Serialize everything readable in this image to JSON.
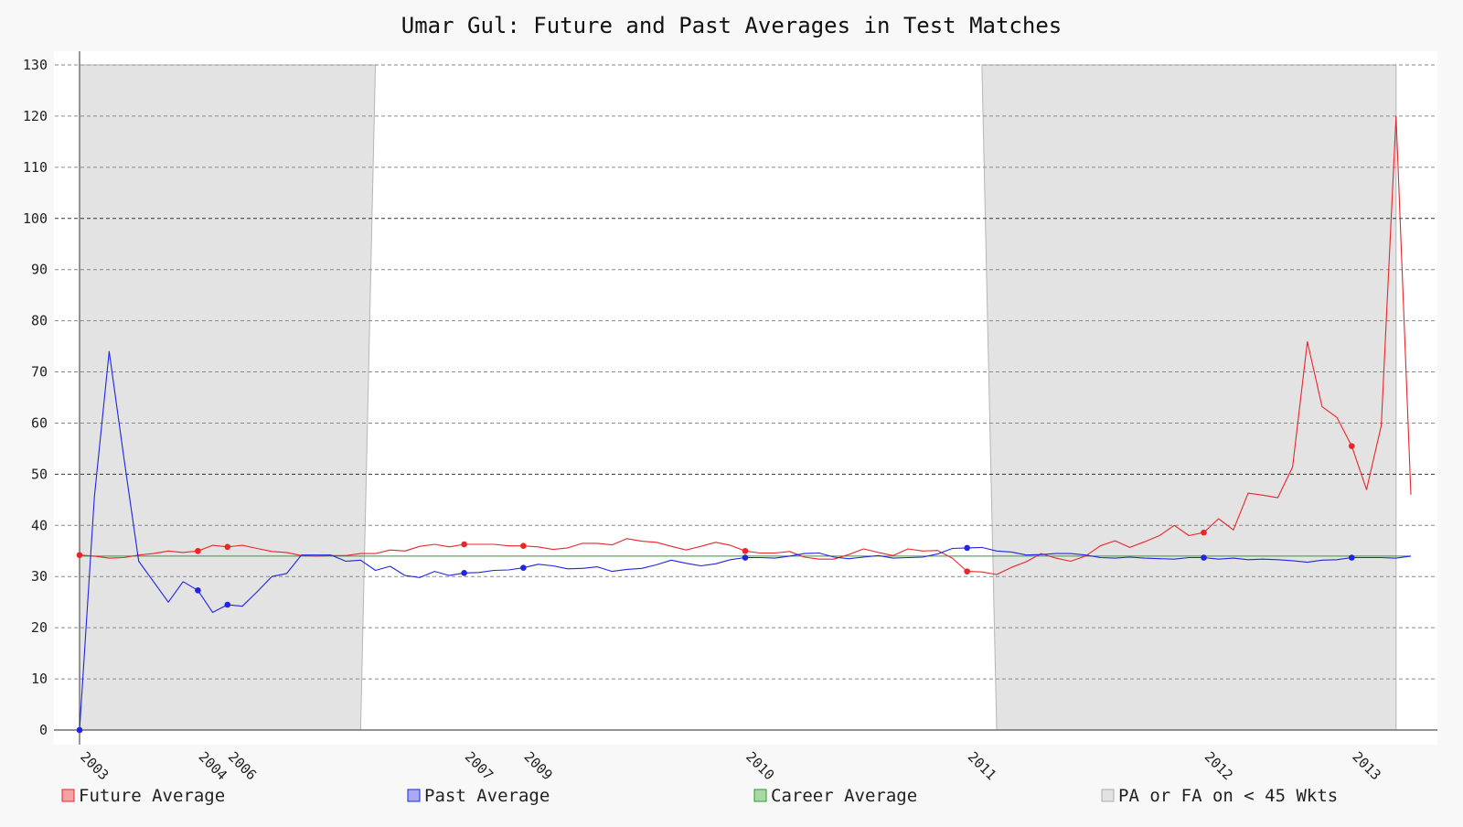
{
  "chart_data": {
    "type": "line",
    "title": "Umar Gul: Future and Past Averages in Test Matches",
    "xlabel": "",
    "ylabel": "",
    "ylim": [
      0,
      130
    ],
    "yticks": [
      0,
      10,
      20,
      30,
      40,
      50,
      60,
      70,
      80,
      90,
      100,
      110,
      120,
      130
    ],
    "grid": true,
    "legend_position": "bottom",
    "match_count": 90,
    "year_ticks": [
      {
        "label": "2003",
        "match": 0
      },
      {
        "label": "2004",
        "match": 8
      },
      {
        "label": "2006",
        "match": 10
      },
      {
        "label": "2007",
        "match": 26
      },
      {
        "label": "2009",
        "match": 30
      },
      {
        "label": "2010",
        "match": 45
      },
      {
        "label": "2011",
        "match": 60
      },
      {
        "label": "2012",
        "match": 76
      },
      {
        "label": "2013",
        "match": 86
      }
    ],
    "career_average": 34,
    "shaded_regions": [
      {
        "top_match": [
          0,
          20
        ],
        "bottom_match": [
          0,
          19
        ]
      },
      {
        "top_match": [
          61,
          89
        ],
        "bottom_match": [
          62,
          89
        ]
      }
    ],
    "series": [
      {
        "name": "Future Average",
        "color": "#e8262b",
        "values": [
          34.2,
          34.0,
          33.6,
          33.7,
          34.2,
          34.5,
          35.0,
          34.7,
          35.0,
          36.1,
          35.8,
          36.1,
          35.5,
          34.9,
          34.7,
          34.1,
          34.0,
          34.1,
          34.1,
          34.5,
          34.5,
          35.2,
          35.0,
          35.9,
          36.3,
          35.8,
          36.3,
          36.3,
          36.3,
          36.0,
          36.0,
          35.8,
          35.3,
          35.6,
          36.5,
          36.5,
          36.2,
          37.4,
          36.9,
          36.7,
          35.9,
          35.2,
          35.9,
          36.7,
          36.1,
          35.0,
          34.6,
          34.6,
          34.9,
          33.8,
          33.4,
          33.4,
          34.3,
          35.4,
          34.7,
          34.1,
          35.4,
          35.0,
          35.1,
          33.6,
          31.0,
          30.9,
          30.4,
          31.8,
          32.9,
          34.5,
          33.6,
          33.0,
          34.0,
          36.0,
          37.0,
          35.7,
          36.8,
          38.0,
          40.0,
          38.0,
          38.6,
          41.3,
          39.1,
          46.3,
          45.9,
          45.4,
          51.4,
          75.9,
          63.2,
          61.1,
          55.5,
          47.0,
          59.5,
          120.0,
          46.0
        ],
        "markers": [
          0,
          8,
          10,
          26,
          30,
          45,
          60,
          76,
          86
        ]
      },
      {
        "name": "Past Average",
        "color": "#2024e4",
        "values": [
          0,
          45.5,
          74.0,
          53.2,
          33.0,
          29.0,
          25.0,
          29.0,
          27.3,
          23.0,
          24.5,
          24.2,
          27.0,
          30.0,
          30.6,
          34.2,
          34.2,
          34.2,
          33.0,
          33.2,
          31.2,
          32.0,
          30.2,
          29.8,
          31.0,
          30.2,
          30.7,
          30.8,
          31.2,
          31.3,
          31.7,
          32.4,
          32.1,
          31.5,
          31.6,
          31.9,
          31.0,
          31.4,
          31.6,
          32.3,
          33.2,
          32.6,
          32.1,
          32.5,
          33.3,
          33.7,
          33.7,
          33.6,
          34.0,
          34.5,
          34.6,
          33.8,
          33.5,
          33.8,
          34.1,
          33.6,
          33.7,
          33.8,
          34.4,
          35.5,
          35.6,
          35.7,
          35.0,
          34.8,
          34.2,
          34.3,
          34.5,
          34.5,
          34.2,
          33.7,
          33.6,
          33.8,
          33.6,
          33.5,
          33.4,
          33.7,
          33.7,
          33.4,
          33.6,
          33.3,
          33.4,
          33.3,
          33.1,
          32.8,
          33.2,
          33.3,
          33.7,
          33.7,
          33.7,
          33.6,
          34.0
        ],
        "markers": [
          0,
          8,
          10,
          26,
          30,
          45,
          60,
          76,
          86
        ]
      }
    ],
    "legend": [
      {
        "label": "Future Average",
        "color": "#f4a3a3",
        "border": "#e8262b"
      },
      {
        "label": "Past Average",
        "color": "#a9aaf1",
        "border": "#2024e4"
      },
      {
        "label": "Career Average",
        "color": "#a6d9a6",
        "border": "#2e9a2e"
      },
      {
        "label": "PA or FA on < 45 Wkts",
        "color": "#e2e2e2",
        "border": "#aaaaaa"
      }
    ]
  }
}
